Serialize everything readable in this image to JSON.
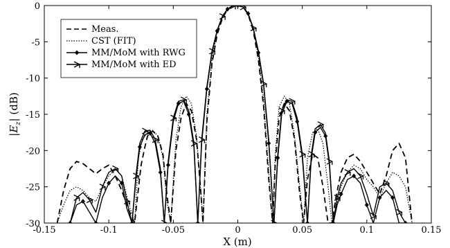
{
  "chart_data": {
    "type": "line",
    "title": "",
    "xlabel": "X (m)",
    "ylabel": "|E_z| (dB)",
    "ylabel_parts": {
      "left_bar": "|",
      "E": "E",
      "sub": "z",
      "right_bar": "|",
      "unit": " (dB)"
    },
    "xlim": [
      -0.15,
      0.15
    ],
    "ylim": [
      -30,
      0
    ],
    "xticks": [
      -0.15,
      -0.1,
      -0.05,
      0,
      0.05,
      0.1,
      0.15
    ],
    "yticks": [
      0,
      -5,
      -10,
      -15,
      -20,
      -25,
      -30
    ],
    "xtick_labels": [
      "-0.15",
      "-0.1",
      "-0.05",
      "0",
      "0.05",
      "0.1",
      "0.15"
    ],
    "ytick_labels": [
      "0",
      "-5",
      "-10",
      "-15",
      "-20",
      "-25",
      "-30"
    ],
    "grid": false,
    "legend_position": "top-left",
    "series": [
      {
        "name": "Meas.",
        "style": "dashed",
        "marker": "none",
        "x": [
          -0.14,
          -0.135,
          -0.13,
          -0.125,
          -0.12,
          -0.115,
          -0.11,
          -0.105,
          -0.1,
          -0.095,
          -0.09,
          -0.085,
          -0.08,
          -0.075,
          -0.072,
          -0.07,
          -0.066,
          -0.062,
          -0.058,
          -0.055,
          -0.052,
          -0.048,
          -0.044,
          -0.04,
          -0.036,
          -0.032,
          -0.029,
          -0.027,
          -0.024,
          -0.02,
          -0.016,
          -0.012,
          -0.008,
          -0.004,
          0,
          0.004,
          0.008,
          0.012,
          0.016,
          0.02,
          0.024,
          0.027,
          0.029,
          0.032,
          0.036,
          0.04,
          0.044,
          0.048,
          0.051,
          0.054,
          0.058,
          0.062,
          0.066,
          0.07,
          0.073,
          0.076,
          0.08,
          0.085,
          0.09,
          0.095,
          0.1,
          0.105,
          0.11,
          0.115,
          0.12,
          0.125,
          0.13,
          0.135
        ],
        "y": [
          -30,
          -25.5,
          -22.5,
          -21.5,
          -21.8,
          -22.5,
          -23.2,
          -22.5,
          -22,
          -23.5,
          -25.5,
          -28,
          -30,
          -22,
          -19.5,
          -18,
          -17.3,
          -18,
          -20.5,
          -26,
          -30,
          -20,
          -15.5,
          -13.5,
          -14.5,
          -18.5,
          -25,
          -30,
          -16,
          -8,
          -4,
          -1.8,
          -0.5,
          -0.05,
          0,
          -0.2,
          -1.2,
          -3.5,
          -7.5,
          -14,
          -24,
          -30,
          -22,
          -15.5,
          -13.5,
          -14.5,
          -18.5,
          -26,
          -30,
          -24,
          -20.5,
          -21,
          -25,
          -30,
          -30,
          -26.5,
          -23,
          -21,
          -20.5,
          -21.5,
          -23,
          -24.5,
          -26,
          -23.5,
          -20,
          -19,
          -21,
          -30
        ]
      },
      {
        "name": "CST (FIT)",
        "style": "dotted",
        "marker": "none",
        "x": [
          -0.14,
          -0.135,
          -0.13,
          -0.125,
          -0.12,
          -0.115,
          -0.11,
          -0.105,
          -0.1,
          -0.095,
          -0.09,
          -0.085,
          -0.08,
          -0.077,
          -0.074,
          -0.07,
          -0.066,
          -0.062,
          -0.058,
          -0.055,
          -0.052,
          -0.048,
          -0.044,
          -0.04,
          -0.036,
          -0.032,
          -0.029,
          -0.027,
          -0.024,
          -0.02,
          -0.016,
          -0.012,
          -0.008,
          -0.004,
          0,
          0.004,
          0.008,
          0.012,
          0.016,
          0.02,
          0.024,
          0.027,
          0.029,
          0.032,
          0.036,
          0.04,
          0.044,
          0.048,
          0.051,
          0.054,
          0.058,
          0.062,
          0.066,
          0.07,
          0.073,
          0.076,
          0.08,
          0.085,
          0.09,
          0.095,
          0.1,
          0.105,
          0.11,
          0.115,
          0.12,
          0.125,
          0.13,
          0.135
        ],
        "y": [
          -30,
          -27.5,
          -25.5,
          -25,
          -25.5,
          -26.5,
          -27,
          -25,
          -23.5,
          -22.5,
          -23.5,
          -27,
          -30,
          -21,
          -18.5,
          -17.5,
          -17.2,
          -18,
          -21,
          -27,
          -30,
          -18.5,
          -14,
          -12.5,
          -13.5,
          -18,
          -25,
          -30,
          -15,
          -7.5,
          -3.5,
          -1.5,
          -0.4,
          -0.05,
          0,
          -0.2,
          -1.2,
          -3.3,
          -7,
          -13,
          -23,
          -30,
          -20.5,
          -14,
          -12.5,
          -13.5,
          -18,
          -25,
          -30,
          -21,
          -17.5,
          -17,
          -19,
          -25,
          -30,
          -28,
          -25,
          -23,
          -22,
          -22.5,
          -24,
          -25,
          -26.5,
          -24.5,
          -23,
          -23.5,
          -25,
          -30
        ]
      },
      {
        "name": "MM/MoM with RWG",
        "style": "solid",
        "marker": "diamond",
        "x": [
          -0.13,
          -0.125,
          -0.12,
          -0.115,
          -0.11,
          -0.105,
          -0.1,
          -0.095,
          -0.09,
          -0.086,
          -0.082,
          -0.079,
          -0.076,
          -0.072,
          -0.068,
          -0.064,
          -0.06,
          -0.057,
          -0.054,
          -0.05,
          -0.046,
          -0.042,
          -0.038,
          -0.034,
          -0.031,
          -0.028,
          -0.024,
          -0.02,
          -0.016,
          -0.012,
          -0.008,
          -0.004,
          0,
          0.004,
          0.008,
          0.012,
          0.016,
          0.02,
          0.024,
          0.028,
          0.031,
          0.034,
          0.038,
          0.042,
          0.046,
          0.05,
          0.054,
          0.057,
          0.06,
          0.064,
          0.068,
          0.071,
          0.074,
          0.077,
          0.08,
          0.085,
          0.09,
          0.095,
          0.1,
          0.105,
          0.11,
          0.115,
          0.12,
          0.125,
          0.13
        ],
        "y": [
          -30,
          -27.5,
          -27,
          -28.5,
          -30,
          -26.5,
          -24.5,
          -23.5,
          -24.5,
          -28,
          -30,
          -24,
          -19.5,
          -17.8,
          -17.6,
          -19,
          -23,
          -30,
          -22,
          -16,
          -13.5,
          -13.2,
          -15,
          -19.5,
          -30,
          -19,
          -11.5,
          -6.5,
          -3.5,
          -1.6,
          -0.5,
          -0.05,
          0,
          -0.2,
          -1.1,
          -3.2,
          -6.5,
          -11,
          -19,
          -30,
          -21,
          -15,
          -13.2,
          -13.5,
          -16,
          -21,
          -30,
          -21,
          -17.5,
          -16.8,
          -18,
          -22,
          -30,
          -27.5,
          -26,
          -24,
          -23.5,
          -24.5,
          -27.5,
          -30,
          -26.5,
          -25.5,
          -26.5,
          -30,
          -30
        ]
      },
      {
        "name": "MM/MoM with ED",
        "style": "solid",
        "marker": "tri-tick",
        "x": [
          -0.13,
          -0.125,
          -0.12,
          -0.115,
          -0.11,
          -0.105,
          -0.1,
          -0.095,
          -0.09,
          -0.086,
          -0.082,
          -0.079,
          -0.076,
          -0.072,
          -0.068,
          -0.064,
          -0.06,
          -0.057,
          -0.054,
          -0.05,
          -0.046,
          -0.042,
          -0.038,
          -0.034,
          -0.031,
          -0.028,
          -0.024,
          -0.02,
          -0.016,
          -0.012,
          -0.008,
          -0.004,
          0,
          0.004,
          0.008,
          0.012,
          0.016,
          0.02,
          0.024,
          0.028,
          0.031,
          0.034,
          0.038,
          0.042,
          0.046,
          0.05,
          0.054,
          0.057,
          0.06,
          0.064,
          0.068,
          0.071,
          0.074,
          0.077,
          0.08,
          0.085,
          0.09,
          0.095,
          0.1,
          0.105,
          0.11,
          0.115,
          0.12,
          0.125,
          0.13
        ],
        "y": [
          -30,
          -26.5,
          -25.8,
          -26.8,
          -28.5,
          -25,
          -23,
          -22.5,
          -23.5,
          -27,
          -30,
          -23.5,
          -19,
          -17.3,
          -17.2,
          -18.5,
          -22.5,
          -30,
          -21.5,
          -15.5,
          -13.2,
          -13,
          -14.5,
          -19,
          -30,
          -18.5,
          -11.2,
          -6.3,
          -3.4,
          -1.5,
          -0.5,
          -0.05,
          0,
          -0.2,
          -1.1,
          -3.1,
          -6.3,
          -10.8,
          -18.5,
          -30,
          -20.5,
          -14.5,
          -13,
          -13.2,
          -15.5,
          -20.5,
          -30,
          -20.5,
          -17,
          -16.4,
          -17.6,
          -21.5,
          -30,
          -26.5,
          -24.5,
          -23,
          -22.5,
          -23.5,
          -26,
          -29,
          -25,
          -24.5,
          -25.5,
          -28.5,
          -30
        ]
      }
    ]
  }
}
